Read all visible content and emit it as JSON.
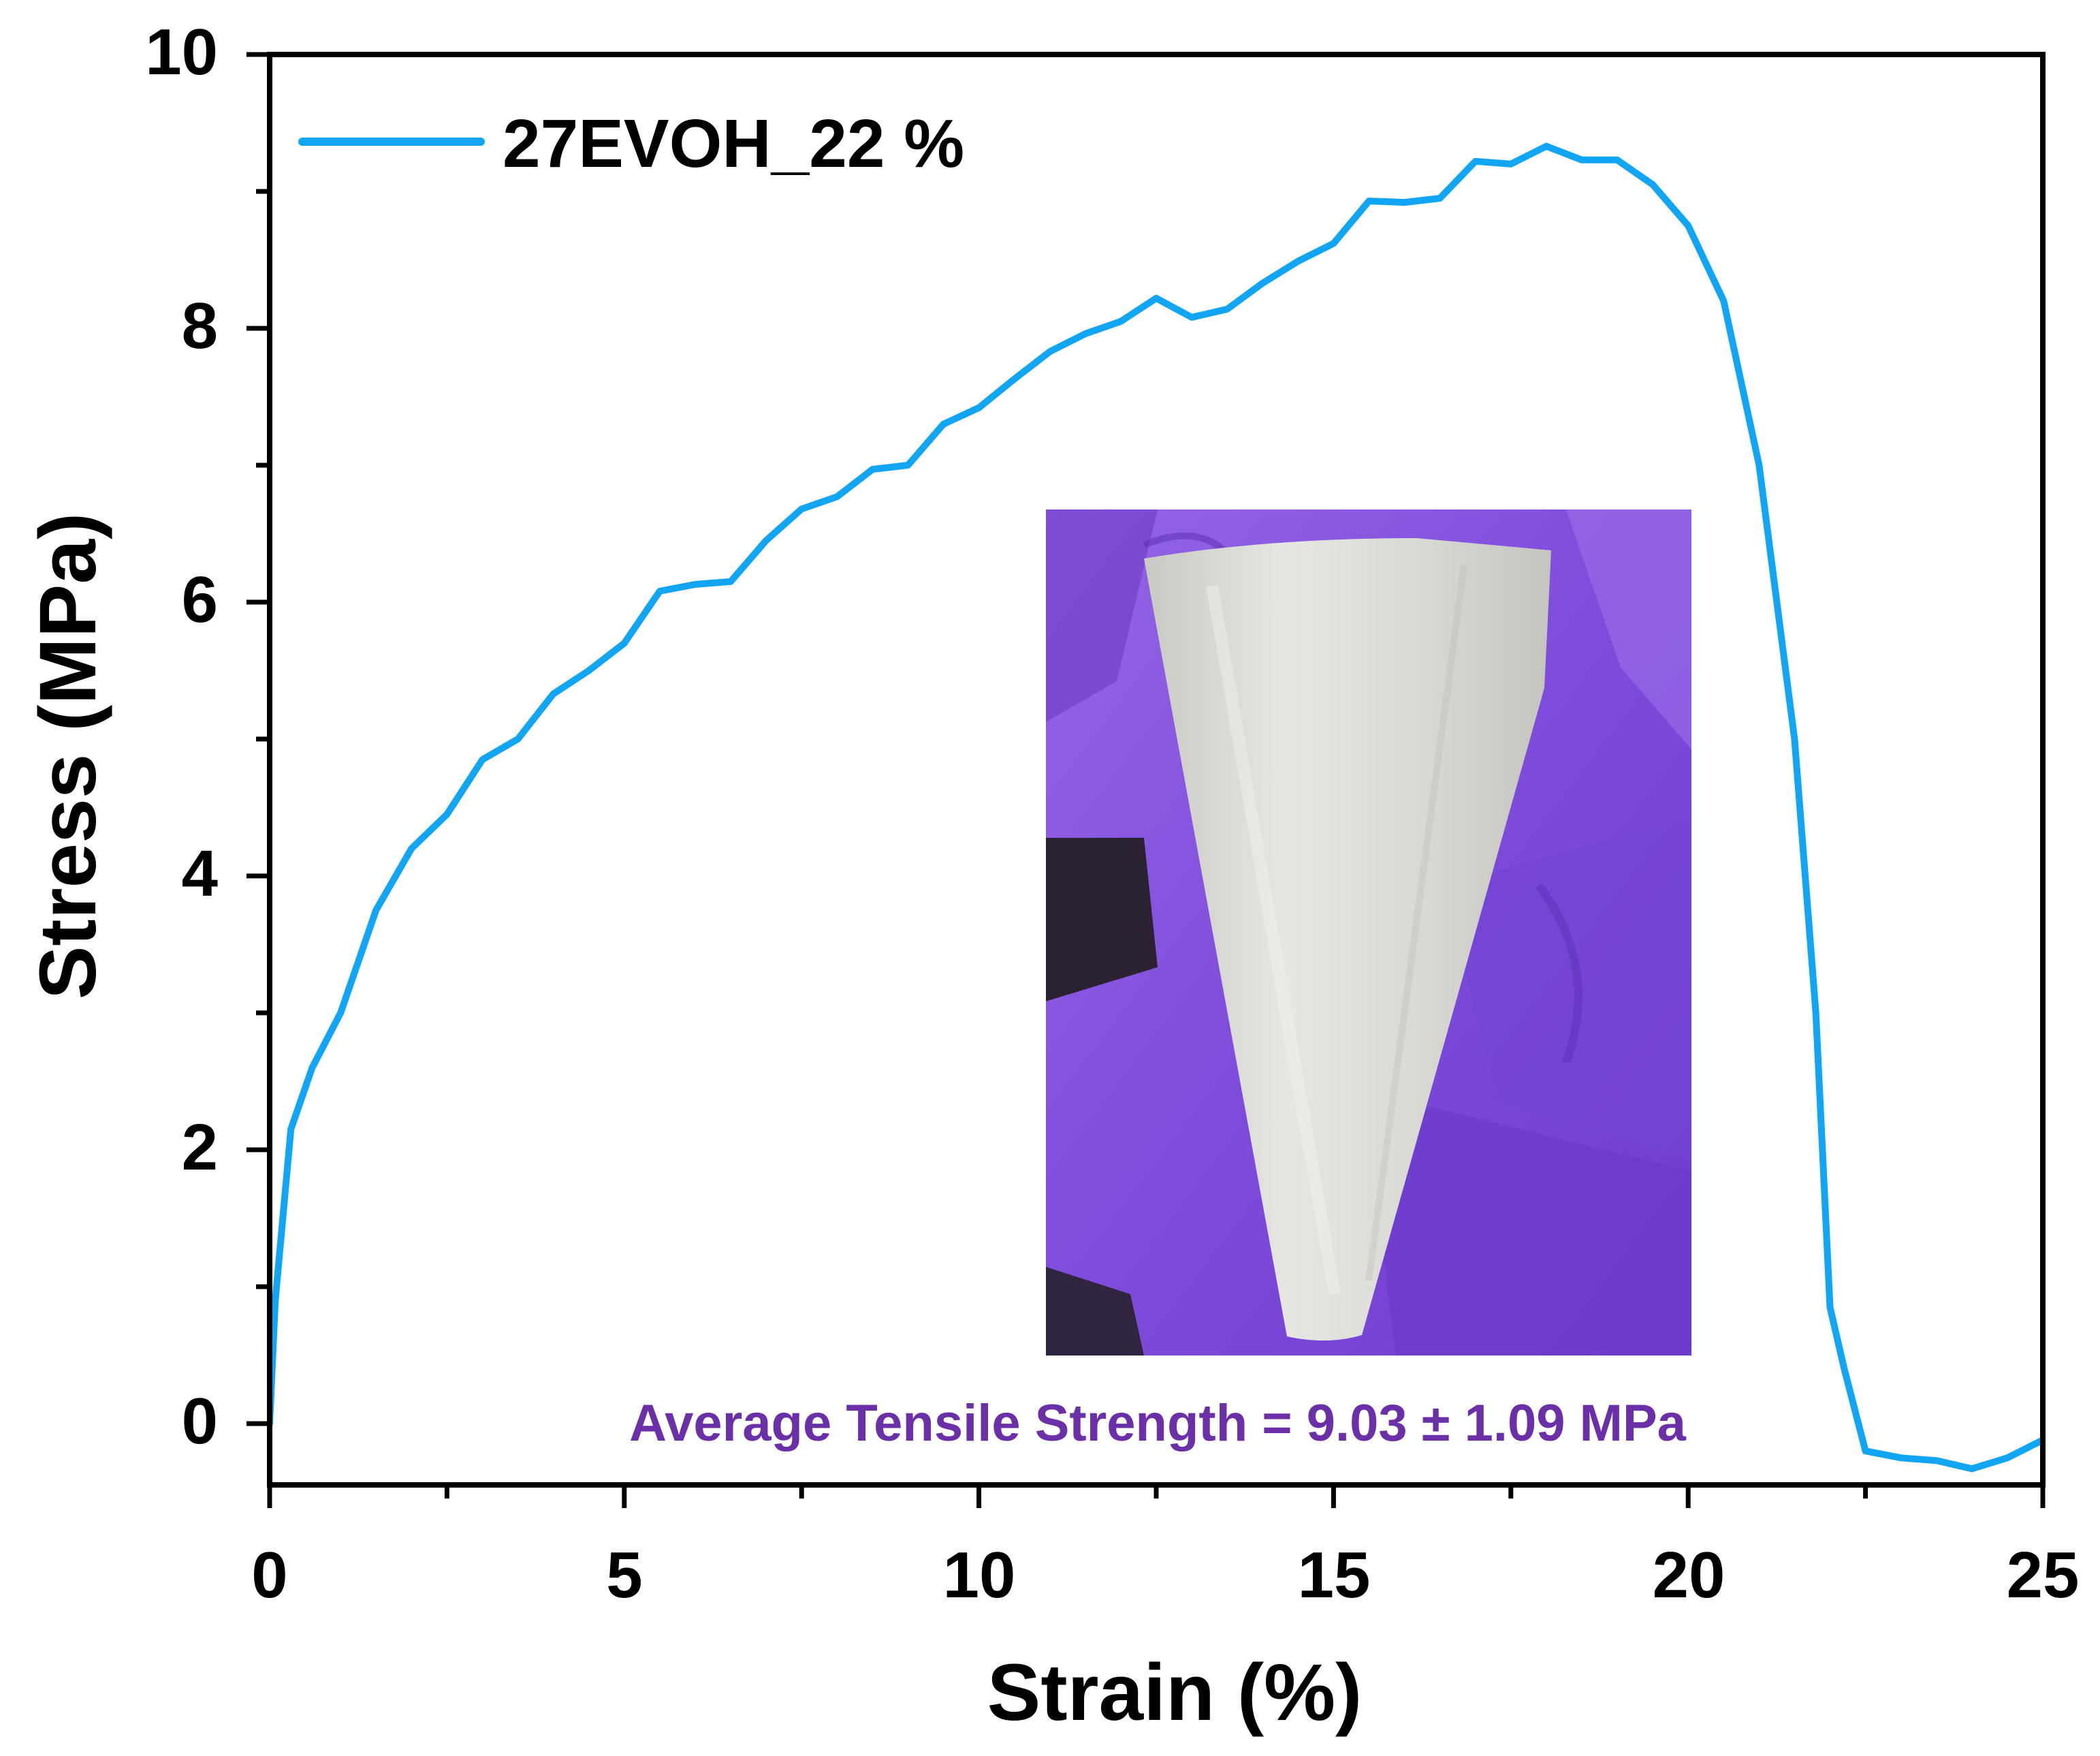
{
  "chart_data": {
    "type": "line",
    "title": "",
    "xlabel": "Strain (%)",
    "ylabel": "Stress (MPa)",
    "xlim": [
      0,
      25
    ],
    "ylim": [
      -0.45,
      10
    ],
    "xticks": [
      0,
      5,
      10,
      15,
      20,
      25
    ],
    "xtick_labels": [
      "0",
      "5",
      "10",
      "15",
      "20",
      "25"
    ],
    "yticks": [
      0,
      2,
      4,
      6,
      8,
      10
    ],
    "ytick_labels": [
      "0",
      "2",
      "4",
      "6",
      "8",
      "10"
    ],
    "grid": false,
    "legend_position": "top-left",
    "series": [
      {
        "name": "27EVOH_22 %",
        "color": "#12a5f4",
        "x": [
          0,
          0.08,
          0.3,
          0.6,
          1.0,
          1.5,
          2.0,
          2.5,
          3.0,
          3.5,
          4.0,
          4.5,
          5.0,
          5.5,
          6.0,
          6.5,
          7.0,
          7.5,
          8.0,
          8.5,
          9.0,
          9.5,
          10.0,
          10.5,
          11.0,
          11.5,
          12.0,
          12.5,
          13.0,
          13.5,
          14.0,
          14.5,
          15.0,
          15.5,
          16.0,
          16.5,
          17.0,
          17.5,
          18.0,
          18.5,
          19.0,
          19.5,
          20.0,
          20.5,
          21.0,
          21.5,
          21.8,
          22.0,
          22.2,
          22.5,
          23.0,
          23.5,
          24.0,
          24.5,
          25.0
        ],
        "values": [
          0.0,
          0.9,
          2.15,
          2.6,
          3.0,
          3.75,
          4.2,
          4.45,
          4.85,
          5.0,
          5.33,
          5.5,
          5.7,
          6.08,
          6.13,
          6.15,
          6.45,
          6.68,
          6.77,
          6.97,
          7.0,
          7.3,
          7.42,
          7.63,
          7.83,
          7.96,
          8.05,
          8.22,
          8.08,
          8.14,
          8.33,
          8.49,
          8.62,
          8.93,
          8.92,
          8.95,
          9.22,
          9.2,
          9.33,
          9.23,
          9.23,
          9.05,
          8.75,
          8.2,
          7.0,
          5.0,
          3.0,
          0.85,
          0.4,
          -0.2,
          -0.25,
          -0.27,
          -0.33,
          -0.25,
          -0.12
        ]
      }
    ],
    "annotations": [
      "Average Tensile Strength = 9.03 ± 1.09 MPa"
    ]
  },
  "inset": {
    "description_icon": "photo-inset",
    "colors": {
      "glove": "#8450de",
      "glove_shadow": "#5f2fb6",
      "cone": "#dcdcd8",
      "background_dark": "#2a2233"
    }
  },
  "colors": {
    "axis": "#000000",
    "line": "#12a5f4",
    "annotation": "#6b2fa8"
  }
}
